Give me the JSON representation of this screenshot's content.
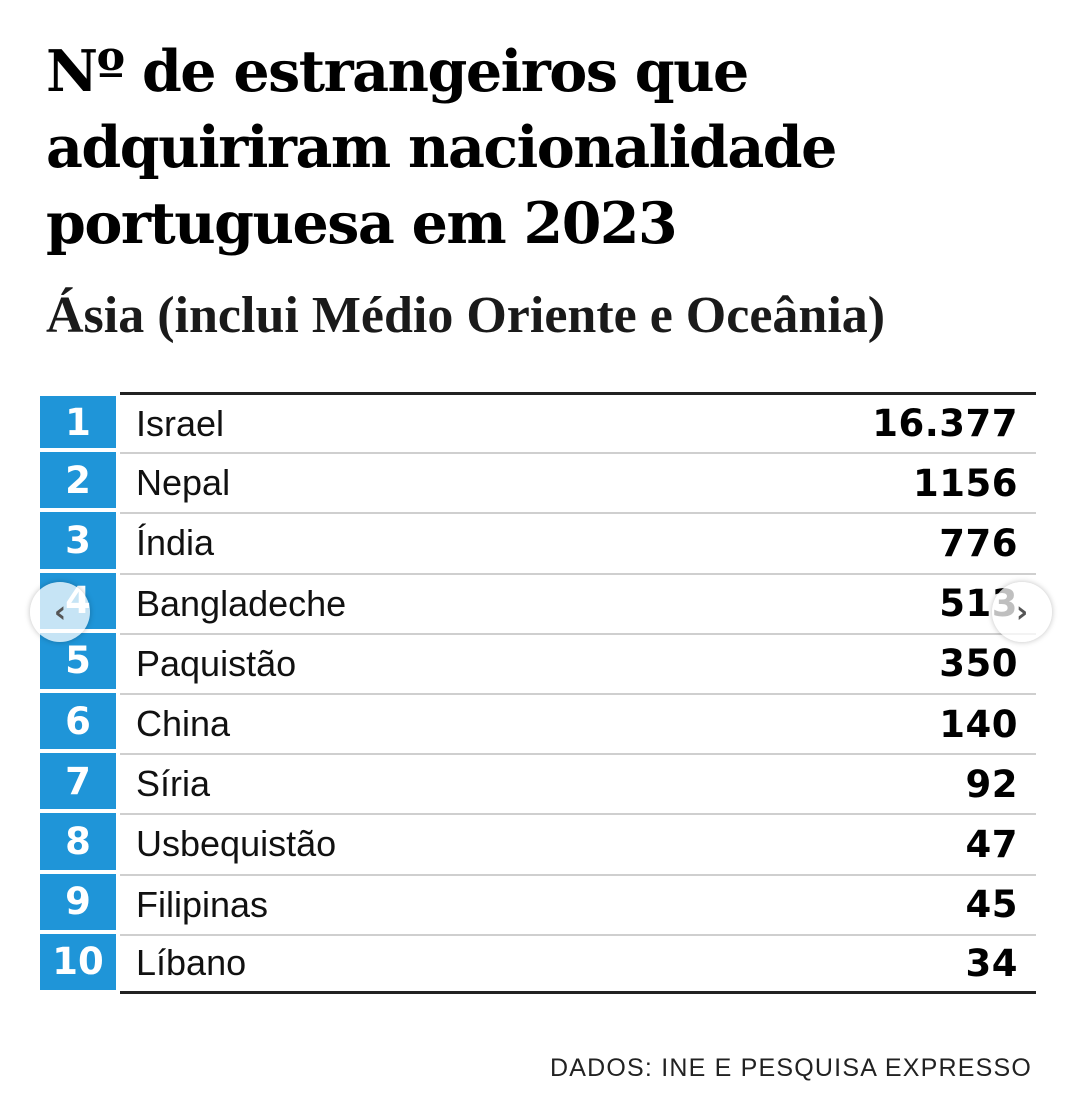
{
  "title": "Nº de estrangeiros que adquiriram nacionalidade portuguesa em 2023",
  "subtitle": "Ásia (inclui Médio Oriente e Oceânia)",
  "rows": [
    {
      "rank": "1",
      "country": "Israel",
      "value": "16.377"
    },
    {
      "rank": "2",
      "country": "Nepal",
      "value": "1156"
    },
    {
      "rank": "3",
      "country": "Índia",
      "value": "776"
    },
    {
      "rank": "4",
      "country": "Bangladeche",
      "value": "513"
    },
    {
      "rank": "5",
      "country": "Paquistão",
      "value": "350"
    },
    {
      "rank": "6",
      "country": "China",
      "value": "140"
    },
    {
      "rank": "7",
      "country": "Síria",
      "value": "92"
    },
    {
      "rank": "8",
      "country": "Usbequistão",
      "value": "47"
    },
    {
      "rank": "9",
      "country": "Filipinas",
      "value": "45"
    },
    {
      "rank": "10",
      "country": "Líbano",
      "value": "34"
    }
  ],
  "source": "DADOS: INE E PESQUISA EXPRESSO",
  "nav": {
    "prev_icon": "chevron-left-icon",
    "next_icon": "chevron-right-icon"
  },
  "colors": {
    "rank_background": "#1f95d8",
    "rank_text": "#ffffff"
  }
}
